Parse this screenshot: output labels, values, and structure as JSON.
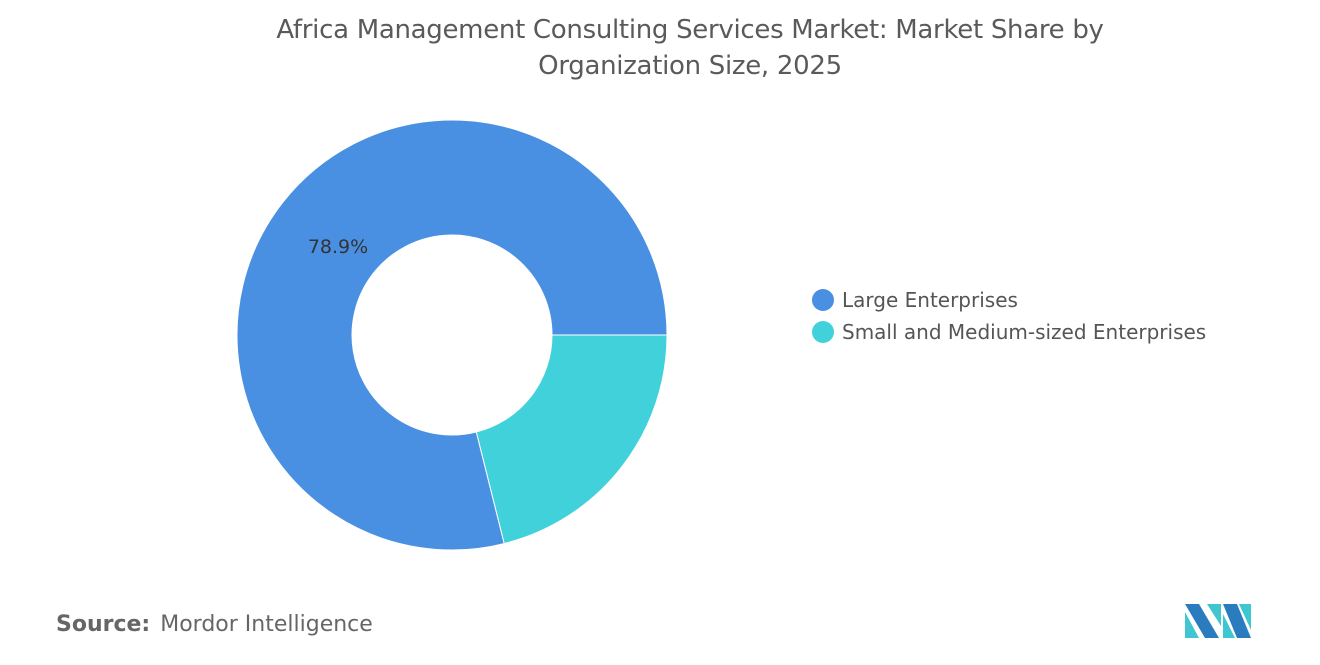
{
  "chart_data": {
    "type": "pie",
    "variant": "donut",
    "title": "Africa Management Consulting Services Market: Market Share by Organization Size, 2025",
    "title_lines": [
      "Africa Management Consulting Services Market: Market Share by",
      "Organization Size, 2025"
    ],
    "categories": [
      "Large Enterprises",
      "Small and Medium-sized Enterprises"
    ],
    "values": [
      78.9,
      21.1
    ],
    "data_labels": [
      "78.9%",
      ""
    ],
    "colors": [
      "#4a90e2",
      "#40d1db"
    ],
    "legend_position": "right"
  },
  "source": {
    "label": "Source:",
    "value": "Mordor Intelligence"
  },
  "logo_colors": [
    "#2b7bbf",
    "#40c6d0"
  ]
}
